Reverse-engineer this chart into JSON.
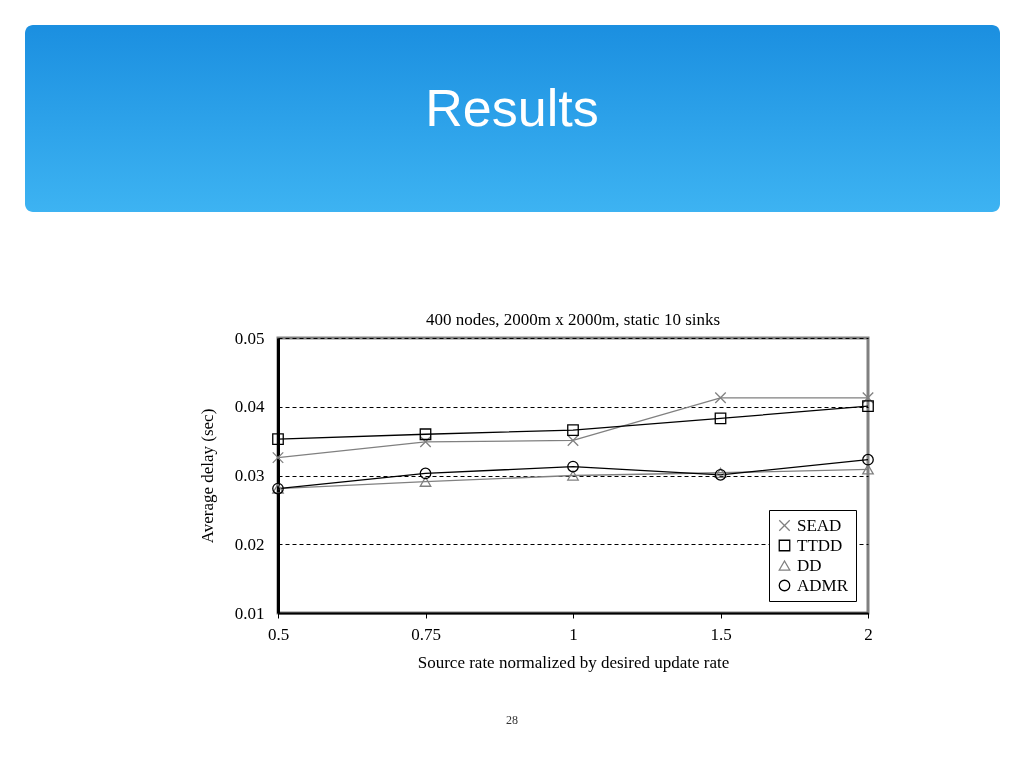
{
  "chart_data": {
    "type": "line",
    "title": "Results",
    "subtitle": "400 nodes, 2000m x 2000m, static 10 sinks",
    "xlabel": "Source rate normalized by desired update rate",
    "ylabel": "Average delay (sec)",
    "categories": [
      "0.5",
      "0.75",
      "1",
      "1.5",
      "2"
    ],
    "series": [
      {
        "name": "SEAD",
        "color": "#808080",
        "marker": "cross",
        "values": [
          0.0326,
          0.0349,
          0.0351,
          0.0413,
          0.0413
        ]
      },
      {
        "name": "TTDD",
        "color": "#000000",
        "marker": "square",
        "values": [
          0.0353,
          0.036,
          0.0366,
          0.0383,
          0.0401
        ]
      },
      {
        "name": "DD",
        "color": "#808080",
        "marker": "triangle",
        "values": [
          0.0281,
          0.0291,
          0.03,
          0.0304,
          0.0309
        ]
      },
      {
        "name": "ADMR",
        "color": "#000000",
        "marker": "circle",
        "values": [
          0.0281,
          0.0303,
          0.0313,
          0.0301,
          0.0323
        ]
      }
    ],
    "ylim": [
      0.01,
      0.05
    ],
    "yticks": [
      0.01,
      0.02,
      0.03,
      0.04,
      0.05
    ],
    "grid": "y",
    "legend": "bottom right",
    "line_style": "solid",
    "annotations": [
      "28"
    ]
  }
}
